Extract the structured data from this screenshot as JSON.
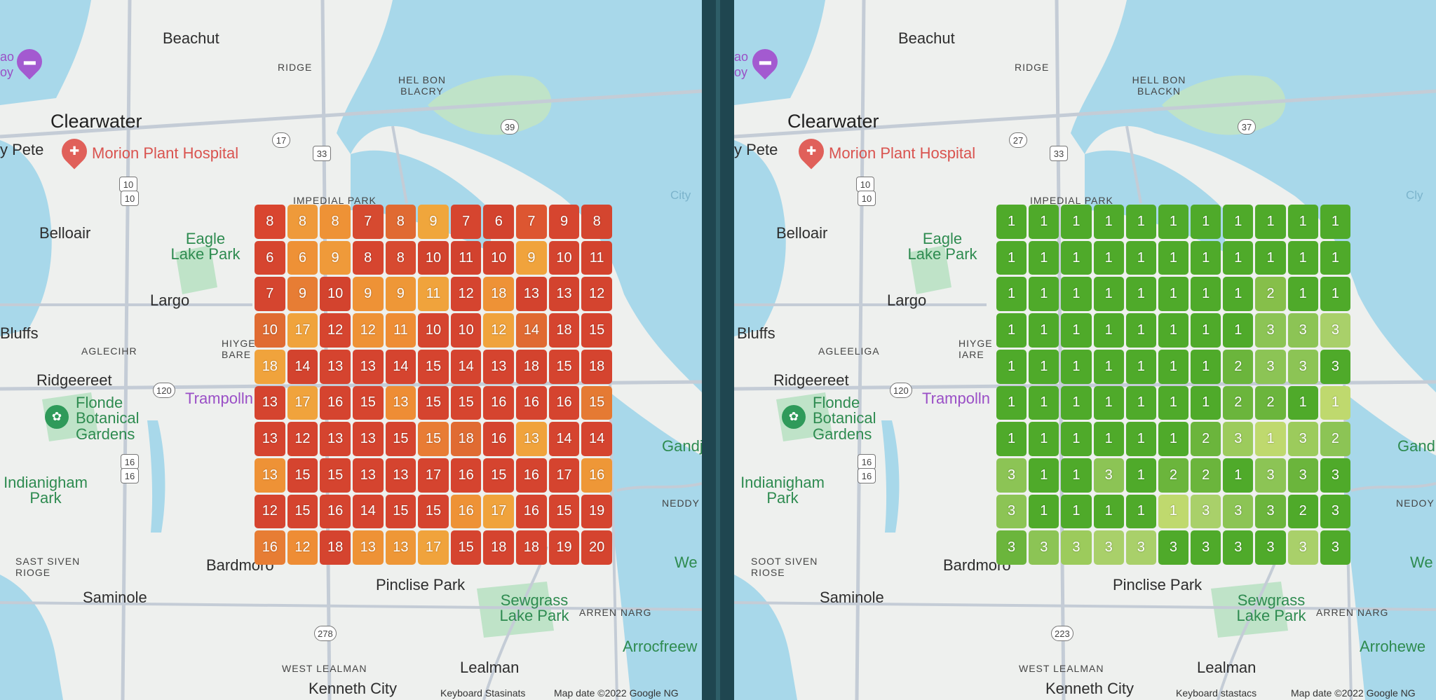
{
  "maps": [
    {
      "id": "left",
      "labels": {
        "beachut": "Beachut",
        "ridge": "RIDGE",
        "helbon": "HEL BON BLACRY",
        "clearwater": "Clearwater",
        "pete": "y Pete",
        "hospital": "Morion Plant Hospital",
        "imperial": "IMPEDIAL PARK",
        "belloair": "Belloair",
        "eagle": "Eagle Lake Park",
        "city": "City",
        "largo": "Largo",
        "bluffs": "Bluffs",
        "aglecihr": "AGLECIHR",
        "hiygebare": "HIYGE BARE",
        "ridgeereet": "Ridgeereet",
        "trampoll": "Trampolln",
        "flonde": "Flonde Botanical Gardens",
        "indianigham": "Indianigham Park",
        "gandj": "Gandj",
        "neddy": "NEDDY",
        "sast": "SAST SIVEN RIOGE",
        "bardmoro": "Bardmoro",
        "pinclise": "Pinclise Park",
        "saminole": "Saminole",
        "sewgrass": "Sewgrass Lake Park",
        "arrennarg": "ARREN NARG",
        "arrocfree": "Arrocfreew",
        "westlealman": "WEST LEALMAN",
        "lealman": "Lealman",
        "kenneth": "Kenneth City",
        "we": "We",
        "bo": "ao",
        "by": "oy"
      },
      "shields": {
        "s17": "17",
        "s33": "33",
        "s39": "39",
        "s10a": "10",
        "s10b": "10",
        "s120": "120",
        "s16": "16",
        "s278": "278",
        "s16b": "16"
      },
      "footer": {
        "keyboard": "Keyboard Stasinats",
        "mapdata": "Map date ©2022 Google NG"
      },
      "grid_values": [
        [
          8,
          8,
          8,
          7,
          8,
          9,
          7,
          6,
          7,
          9,
          8
        ],
        [
          6,
          6,
          9,
          8,
          8,
          10,
          11,
          10,
          9,
          10,
          11
        ],
        [
          7,
          9,
          10,
          9,
          9,
          11,
          12,
          18,
          13,
          13,
          12
        ],
        [
          10,
          17,
          12,
          12,
          11,
          10,
          10,
          12,
          14,
          18,
          15
        ],
        [
          18,
          14,
          13,
          13,
          14,
          15,
          14,
          13,
          18,
          15,
          18
        ],
        [
          13,
          17,
          16,
          15,
          13,
          15,
          15,
          16,
          16,
          16,
          15
        ],
        [
          13,
          12,
          13,
          13,
          15,
          15,
          18,
          16,
          13,
          14,
          14
        ],
        [
          13,
          15,
          15,
          13,
          13,
          17,
          16,
          15,
          16,
          17,
          16
        ],
        [
          12,
          15,
          16,
          14,
          15,
          15,
          16,
          17,
          16,
          15,
          19
        ],
        [
          16,
          12,
          18,
          13,
          13,
          17,
          15,
          18,
          18,
          19,
          20
        ]
      ],
      "grid_colors": [
        [
          "#d9452f",
          "#ef9a3a",
          "#ee9236",
          "#d64a30",
          "#e06a32",
          "#f0a63c",
          "#d6452f",
          "#d3432e",
          "#dd5631",
          "#d6452f",
          "#d4452f"
        ],
        [
          "#d6452f",
          "#ee9136",
          "#ef9a3a",
          "#d6452f",
          "#d74a30",
          "#d2432e",
          "#d2422e",
          "#d3432e",
          "#f0a33c",
          "#d4442f",
          "#d3432e"
        ],
        [
          "#d5452f",
          "#e77d34",
          "#d3432e",
          "#ee9236",
          "#ee9737",
          "#f0a33c",
          "#d5442f",
          "#ee9236",
          "#d3432e",
          "#d3432e",
          "#d4442f"
        ],
        [
          "#e06b32",
          "#f0a33c",
          "#d6452f",
          "#ee9236",
          "#ee8d35",
          "#d5452f",
          "#d5442f",
          "#f0a33c",
          "#e06a32",
          "#d5442f",
          "#d5442f"
        ],
        [
          "#f0a33c",
          "#d3432e",
          "#d5442f",
          "#d5442f",
          "#d5442f",
          "#d5442f",
          "#d5442f",
          "#d5442f",
          "#d3432e",
          "#d5442f",
          "#d5442f"
        ],
        [
          "#d5442f",
          "#f0a33c",
          "#d5442f",
          "#d6452f",
          "#ee8d35",
          "#d5442f",
          "#d6452f",
          "#d5442f",
          "#d5442f",
          "#d5442f",
          "#e57a33"
        ],
        [
          "#d5442f",
          "#d5442f",
          "#d5442f",
          "#d5442f",
          "#d5442f",
          "#e87c34",
          "#e06b32",
          "#d5442f",
          "#f0a33c",
          "#d5442f",
          "#d5442f"
        ],
        [
          "#ee9236",
          "#d5442f",
          "#d5442f",
          "#d5442f",
          "#d5442f",
          "#d5442f",
          "#d5442f",
          "#d5442f",
          "#d5442f",
          "#d5442f",
          "#ee9737"
        ],
        [
          "#d5442f",
          "#d5442f",
          "#d5442f",
          "#d5442f",
          "#d5442f",
          "#d5442f",
          "#ee9236",
          "#f0a33c",
          "#d5442f",
          "#d5442f",
          "#d5442f"
        ],
        [
          "#e77d34",
          "#ee8d35",
          "#d5442f",
          "#ee9236",
          "#ee9737",
          "#f0a33c",
          "#d5442f",
          "#d5442f",
          "#d5442f",
          "#d5442f",
          "#d5442f"
        ]
      ]
    },
    {
      "id": "right",
      "labels": {
        "beachut": "Beachut",
        "ridge": "RIDGE",
        "helbon": "HELL BON BLACKN",
        "clearwater": "Clearwater",
        "pete": "y Pete",
        "hospital": "Morion Plant Hospital",
        "imperial": "IMPEDIAL PARK",
        "belloair": "Belloair",
        "eagle": "Eagle Lake Park",
        "city": "Cly",
        "largo": "Largo",
        "bluffs": "Bluffs",
        "aglecihr": "AGLEELIGA",
        "hiygebare": "HIYGE IARE",
        "ridgeereet": "Ridgeereet",
        "trampoll": "Trampolln",
        "flonde": "Flonde Botanical Gardens",
        "indianigham": "Indianigham Park",
        "gandj": "Gand",
        "neddy": "NEDOY",
        "sast": "SOOT SIVEN RIOSE",
        "bardmoro": "Bardmoro",
        "pinclise": "Pinclise Park",
        "saminole": "Saminole",
        "sewgrass": "Sewgrass Lake Park",
        "arrennarg": "ARREN NARG",
        "arrocfree": "Arrohewe",
        "westlealman": "WEST LEALMAN",
        "lealman": "Lealman",
        "kenneth": "Kenneth City",
        "we": "We",
        "bo": "ao",
        "by": "oy"
      },
      "shields": {
        "s17": "27",
        "s33": "33",
        "s39": "37",
        "s10a": "10",
        "s10b": "10",
        "s120": "120",
        "s16": "16",
        "s278": "223",
        "s16b": "16"
      },
      "footer": {
        "keyboard": "Keyboard stastacs",
        "mapdata": "Map date ©2022 Google NG"
      },
      "grid_values": [
        [
          1,
          1,
          1,
          1,
          1,
          1,
          1,
          1,
          1,
          1,
          1
        ],
        [
          1,
          1,
          1,
          1,
          1,
          1,
          1,
          1,
          1,
          1,
          1
        ],
        [
          1,
          1,
          1,
          1,
          1,
          1,
          1,
          1,
          2,
          1,
          1
        ],
        [
          1,
          1,
          1,
          1,
          1,
          1,
          1,
          1,
          3,
          3,
          3
        ],
        [
          1,
          1,
          1,
          1,
          1,
          1,
          1,
          2,
          3,
          3,
          3
        ],
        [
          1,
          1,
          1,
          1,
          1,
          1,
          1,
          2,
          2,
          1,
          1
        ],
        [
          1,
          1,
          1,
          1,
          1,
          1,
          2,
          3,
          1,
          3,
          2
        ],
        [
          3,
          1,
          1,
          3,
          1,
          2,
          2,
          1,
          3,
          3,
          3
        ],
        [
          3,
          1,
          1,
          1,
          1,
          1,
          3,
          3,
          3,
          2,
          3
        ],
        [
          3,
          3,
          3,
          3,
          3,
          3,
          3,
          3,
          3,
          3,
          3
        ]
      ],
      "grid_colors": [
        [
          "#4faa2a",
          "#4faa2a",
          "#4faa2a",
          "#4faa2a",
          "#4faa2a",
          "#4faa2a",
          "#4faa2a",
          "#4faa2a",
          "#4faa2a",
          "#4faa2a",
          "#4faa2a"
        ],
        [
          "#4faa2a",
          "#4faa2a",
          "#4faa2a",
          "#4faa2a",
          "#4faa2a",
          "#4faa2a",
          "#4faa2a",
          "#4faa2a",
          "#4faa2a",
          "#4faa2a",
          "#4faa2a"
        ],
        [
          "#4faa2a",
          "#4faa2a",
          "#4faa2a",
          "#4faa2a",
          "#4faa2a",
          "#4faa2a",
          "#4faa2a",
          "#4faa2a",
          "#86bf4a",
          "#4faa2a",
          "#4faa2a"
        ],
        [
          "#4faa2a",
          "#4faa2a",
          "#4faa2a",
          "#4faa2a",
          "#4faa2a",
          "#4faa2a",
          "#4faa2a",
          "#4faa2a",
          "#8cc455",
          "#8cc455",
          "#a9d06a"
        ],
        [
          "#4faa2a",
          "#4faa2a",
          "#4faa2a",
          "#4faa2a",
          "#4faa2a",
          "#4faa2a",
          "#4faa2a",
          "#6bb53c",
          "#8cc455",
          "#8cc455",
          "#4faa2a"
        ],
        [
          "#4faa2a",
          "#4faa2a",
          "#4faa2a",
          "#4faa2a",
          "#4faa2a",
          "#4faa2a",
          "#4faa2a",
          "#6bb53c",
          "#6bb53c",
          "#4faa2a",
          "#bfd96e"
        ],
        [
          "#4faa2a",
          "#4faa2a",
          "#4faa2a",
          "#4faa2a",
          "#4faa2a",
          "#4faa2a",
          "#6bb53c",
          "#9ccb5c",
          "#bfd96e",
          "#9ccb5c",
          "#8cc455"
        ],
        [
          "#8cc455",
          "#4faa2a",
          "#4faa2a",
          "#8cc455",
          "#4faa2a",
          "#6bb53c",
          "#6bb53c",
          "#4faa2a",
          "#8cc455",
          "#6bb53c",
          "#4faa2a"
        ],
        [
          "#8cc455",
          "#4faa2a",
          "#4faa2a",
          "#4faa2a",
          "#4faa2a",
          "#bfd96e",
          "#a9d06a",
          "#8cc455",
          "#6bb53c",
          "#4faa2a",
          "#4faa2a"
        ],
        [
          "#6bb53c",
          "#8cc455",
          "#9ccb5c",
          "#a9d06a",
          "#a9d06a",
          "#4faa2a",
          "#4faa2a",
          "#4faa2a",
          "#4faa2a",
          "#a9d06a",
          "#4faa2a"
        ]
      ]
    }
  ],
  "colors": {
    "water": "#a8d8ea",
    "land": "#eef0ee",
    "road": "#c4ccd6",
    "park": "#bfe3c8"
  }
}
